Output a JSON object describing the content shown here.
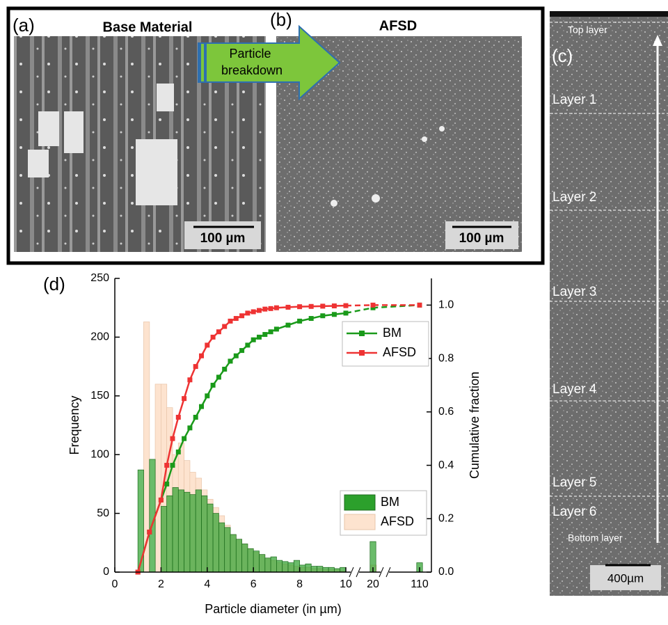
{
  "panels": {
    "a": {
      "label": "(a)",
      "title": "Base Material",
      "scale_bar": "100 µm"
    },
    "b": {
      "label": "(b)",
      "title": "AFSD",
      "scale_bar": "100 µm",
      "arrow": "Particle breakdown"
    },
    "c": {
      "label": "(c)",
      "layers": [
        "Top layer",
        "Layer 1",
        "Layer 2",
        "Layer 3",
        "Layer 4",
        "Layer 5",
        "Layer 6",
        "Bottom layer"
      ],
      "scale_bar": "400µm"
    }
  },
  "chart_data": {
    "type": "combo",
    "panel_label": "(d)",
    "x_label": "Particle diameter (in µm)",
    "y_label": "Frequency",
    "y2_label": "Cumulative fraction",
    "xlim": [
      0,
      130
    ],
    "xticks": [
      0,
      2,
      4,
      6,
      8,
      10,
      20,
      110
    ],
    "ylim": [
      0,
      250
    ],
    "yticks": [
      0,
      50,
      100,
      150,
      200,
      250
    ],
    "y2lim": [
      0,
      1.1
    ],
    "y2ticks": [
      {
        "value": 0,
        "label": "0.0"
      },
      0.2,
      0.4,
      0.6,
      0.8,
      {
        "value": 1,
        "label": "1.0"
      }
    ],
    "series": [
      {
        "name": "AFSD",
        "type": "bar",
        "color": "#fde3cf",
        "x": [
          1.125,
          1.375,
          1.625,
          1.875,
          2.125,
          2.375,
          2.625,
          2.875,
          3.125,
          3.375,
          3.625,
          3.875,
          4.125,
          4.375,
          4.625,
          4.875,
          5.125,
          5.375,
          5.625,
          5.875,
          6.125,
          6.375,
          6.625,
          6.875,
          7.125,
          7.375,
          7.625,
          7.875,
          8.125,
          8.375,
          8.625,
          8.875,
          9.125,
          9.375,
          9.625,
          9.875,
          21
        ],
        "values": [
          0,
          213,
          0,
          160,
          160,
          140,
          100,
          110,
          95,
          85,
          80,
          70,
          62,
          55,
          48,
          40,
          32,
          28,
          24,
          20,
          17,
          15,
          12,
          10,
          8,
          7,
          6,
          5,
          4,
          4,
          3,
          3,
          2,
          2,
          2,
          1,
          6
        ]
      },
      {
        "name": "BM",
        "type": "bar",
        "color": "#2ca02c",
        "x": [
          1.125,
          1.375,
          1.625,
          1.875,
          2.125,
          2.375,
          2.625,
          2.875,
          3.125,
          3.375,
          3.625,
          3.875,
          4.125,
          4.375,
          4.625,
          4.875,
          5.125,
          5.375,
          5.625,
          5.875,
          6.125,
          6.375,
          6.625,
          6.875,
          7.125,
          7.375,
          7.625,
          7.875,
          8.125,
          8.375,
          8.625,
          8.875,
          9.125,
          9.375,
          9.625,
          9.875,
          20,
          110
        ],
        "values": [
          87,
          0,
          96,
          0,
          56,
          65,
          72,
          70,
          68,
          66,
          70,
          65,
          58,
          50,
          42,
          38,
          32,
          28,
          24,
          20,
          18,
          15,
          12,
          13,
          10,
          9,
          8,
          10,
          6,
          7,
          5,
          5,
          4,
          4,
          3,
          4,
          26,
          8
        ]
      },
      {
        "name": "BM",
        "type": "line",
        "axis": "y2",
        "color": "#1a9a1a",
        "x": [
          1,
          1.5,
          2,
          2.25,
          2.5,
          2.75,
          3,
          3.25,
          3.5,
          3.75,
          4,
          4.25,
          4.5,
          4.75,
          5,
          5.25,
          5.5,
          5.75,
          6,
          6.25,
          6.5,
          6.75,
          7,
          7.5,
          8,
          8.5,
          9,
          9.5,
          10,
          20,
          110
        ],
        "values": [
          0,
          0.15,
          0.27,
          0.33,
          0.4,
          0.45,
          0.5,
          0.54,
          0.58,
          0.62,
          0.66,
          0.7,
          0.73,
          0.76,
          0.79,
          0.81,
          0.83,
          0.85,
          0.87,
          0.88,
          0.89,
          0.9,
          0.91,
          0.925,
          0.94,
          0.95,
          0.96,
          0.965,
          0.97,
          0.99,
          1.0
        ]
      },
      {
        "name": "AFSD",
        "type": "line",
        "axis": "y2",
        "color": "#ee3333",
        "x": [
          1,
          1.5,
          2,
          2.25,
          2.5,
          2.75,
          3,
          3.25,
          3.5,
          3.75,
          4,
          4.25,
          4.5,
          4.75,
          5,
          5.25,
          5.5,
          5.75,
          6,
          6.25,
          6.5,
          6.75,
          7,
          7.5,
          8,
          8.5,
          9,
          9.5,
          10,
          20,
          110
        ],
        "values": [
          0,
          0.15,
          0.27,
          0.4,
          0.5,
          0.58,
          0.65,
          0.72,
          0.77,
          0.81,
          0.85,
          0.88,
          0.9,
          0.92,
          0.94,
          0.95,
          0.96,
          0.97,
          0.975,
          0.98,
          0.985,
          0.987,
          0.99,
          0.992,
          0.994,
          0.995,
          0.996,
          0.997,
          0.998,
          1.0,
          1.0
        ]
      }
    ]
  }
}
